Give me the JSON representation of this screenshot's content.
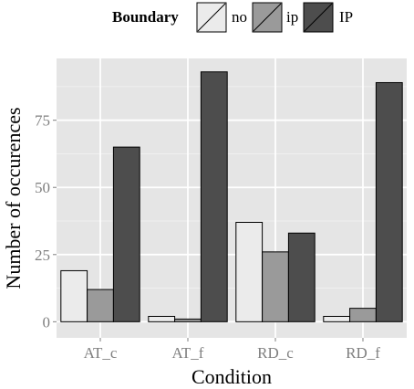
{
  "chart_data": {
    "type": "bar",
    "xlabel": "Condition",
    "ylabel": "Number of occurences",
    "categories": [
      "AT_c",
      "AT_f",
      "RD_c",
      "RD_f"
    ],
    "series": [
      {
        "name": "no",
        "values": [
          19,
          2,
          37,
          2
        ],
        "color": "#ebebeb"
      },
      {
        "name": "ip",
        "values": [
          12,
          1,
          26,
          5
        ],
        "color": "#9a9a9a"
      },
      {
        "name": "IP",
        "values": [
          65,
          93,
          33,
          89
        ],
        "color": "#4d4d4d"
      }
    ],
    "ylim": [
      -6,
      98
    ],
    "yticks": [
      0,
      25,
      50,
      75
    ],
    "grid": true,
    "panel_background": "#e5e5e5",
    "legend": {
      "title": "Boundary",
      "position": "top"
    }
  }
}
